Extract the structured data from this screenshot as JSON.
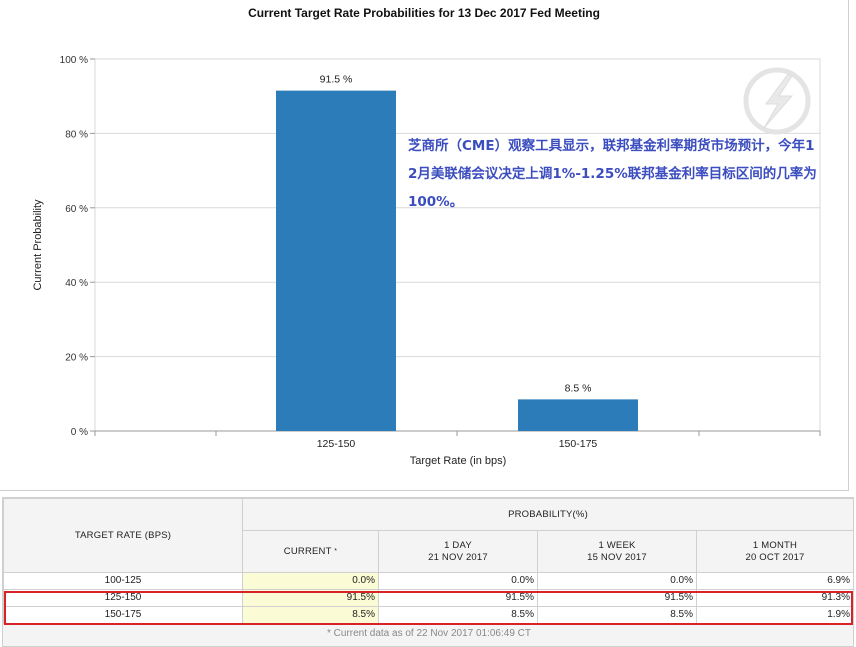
{
  "chart_data": {
    "type": "bar",
    "title": "Current Target Rate Probabilities for 13 Dec 2017 Fed Meeting",
    "categories": [
      "125-150",
      "150-175"
    ],
    "values": [
      91.5,
      8.5
    ],
    "data_labels": [
      "91.5 %",
      "8.5 %"
    ],
    "xlabel": "Target Rate (in bps)",
    "ylabel": "Current Probability",
    "ylim": [
      0,
      100
    ],
    "yticks": [
      "0 %",
      "20 %",
      "40 %",
      "60 %",
      "80 %",
      "100 %"
    ],
    "ytick_values": [
      0,
      20,
      40,
      60,
      80,
      100
    ],
    "grid": true,
    "bar_color": "#2b7cb8"
  },
  "annotation": "芝商所（CME）观察工具显示，联邦基金利率期货市场预计，今年12月美联储会议决定上调1%-1.25%联邦基金利率目标区间的几率为100%。",
  "annotation_color": "#3b4dbf",
  "watermark_icon": "lightning-logo-icon",
  "table": {
    "rate_header": "TARGET RATE (BPS)",
    "prob_header": "PROBABILITY(%)",
    "columns": [
      {
        "line1": "CURRENT",
        "line2": "",
        "star": "*"
      },
      {
        "line1": "1 DAY",
        "line2": "21 NOV 2017",
        "star": ""
      },
      {
        "line1": "1 WEEK",
        "line2": "15 NOV 2017",
        "star": ""
      },
      {
        "line1": "1 MONTH",
        "line2": "20 OCT 2017",
        "star": ""
      }
    ],
    "rows": [
      {
        "rate": "100-125",
        "current": "0.0%",
        "day": "0.0%",
        "week": "0.0%",
        "month": "6.9%"
      },
      {
        "rate": "125-150",
        "current": "91.5%",
        "day": "91.5%",
        "week": "91.5%",
        "month": "91.3%"
      },
      {
        "rate": "150-175",
        "current": "8.5%",
        "day": "8.5%",
        "week": "8.5%",
        "month": "1.9%"
      }
    ],
    "footnote": "* Current data as of 22 Nov 2017 01:06:49 CT",
    "highlight_color": "#d8222a"
  }
}
